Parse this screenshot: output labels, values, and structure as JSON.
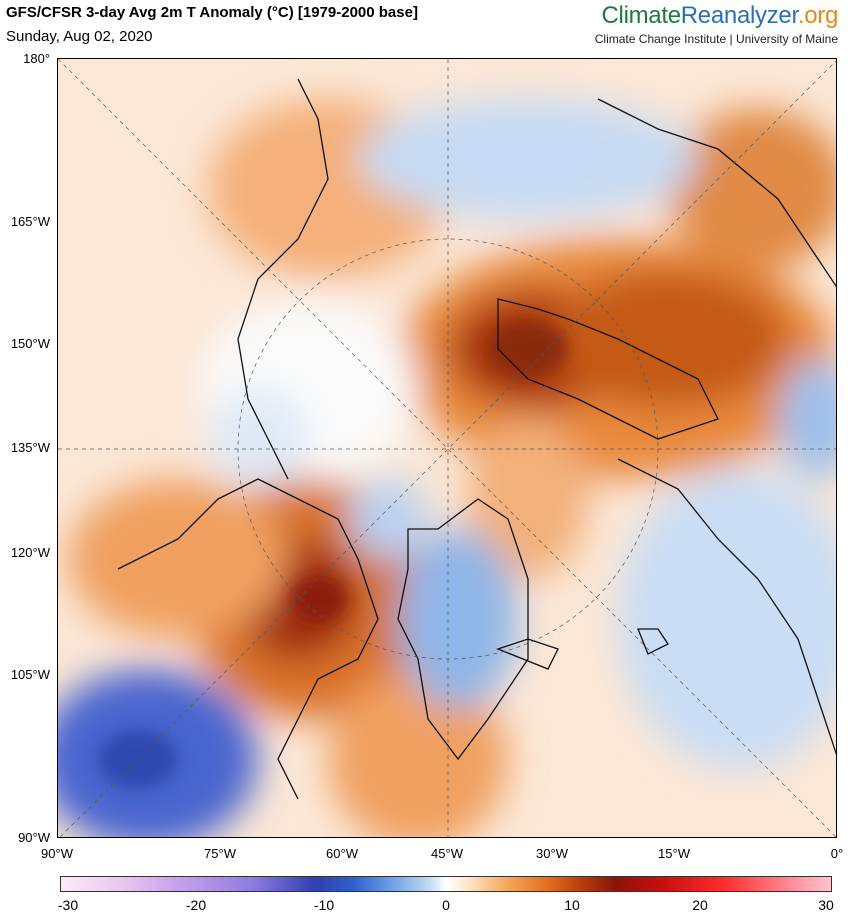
{
  "header": {
    "title": "GFS/CFSR 3-day Avg 2m T Anomaly (°C) [1979-2000 base]",
    "date": "Sunday, Aug 02, 2020"
  },
  "brand": {
    "part1": "Climate",
    "part2": "Reanalyzer",
    "part3": ".org",
    "subtitle": "Climate Change Institute | University of Maine"
  },
  "map": {
    "left_axis_labels": [
      "180°",
      "165°W",
      "150°W",
      "135°W",
      "120°W",
      "105°W",
      "90°W"
    ],
    "bottom_axis_labels": [
      "90°W",
      "75°W",
      "60°W",
      "45°W",
      "30°W",
      "15°W",
      "0°"
    ]
  },
  "colorbar": {
    "labels": [
      "-30",
      "-20",
      "-10",
      "0",
      "10",
      "20",
      "30"
    ],
    "min": -30,
    "max": 30
  }
}
